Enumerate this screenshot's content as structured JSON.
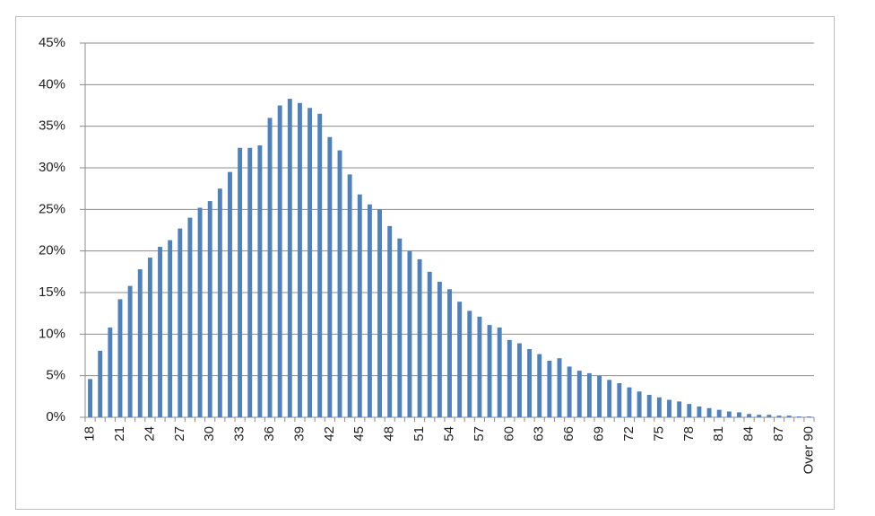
{
  "chart_data": {
    "type": "bar",
    "color": "#4f81bd",
    "grid": true,
    "categories": [
      "18",
      null,
      null,
      "21",
      null,
      null,
      "24",
      null,
      null,
      "27",
      null,
      null,
      "30",
      null,
      null,
      "33",
      null,
      null,
      "36",
      null,
      null,
      "39",
      null,
      null,
      "42",
      null,
      null,
      "45",
      null,
      null,
      "48",
      null,
      null,
      "51",
      null,
      null,
      "54",
      null,
      null,
      "57",
      null,
      null,
      "60",
      null,
      null,
      "63",
      null,
      null,
      "66",
      null,
      null,
      "69",
      null,
      null,
      "72",
      null,
      null,
      "75",
      null,
      null,
      "78",
      null,
      null,
      "81",
      null,
      null,
      "84",
      null,
      null,
      "87",
      null,
      null,
      "Over 90"
    ],
    "values": [
      4.6,
      8,
      10.8,
      14.2,
      15.8,
      17.8,
      19.2,
      20.5,
      21.3,
      22.7,
      24,
      25.2,
      26,
      27.5,
      29.5,
      32.4,
      32.4,
      32.7,
      36,
      37.5,
      38.3,
      37.8,
      37.2,
      36.5,
      33.7,
      32.1,
      29.2,
      26.8,
      25.6,
      25,
      23,
      21.5,
      20,
      19,
      17.5,
      16.3,
      15.4,
      13.9,
      12.8,
      12.1,
      11.1,
      10.8,
      9.3,
      8.9,
      8.2,
      7.6,
      6.8,
      7.1,
      6.1,
      5.6,
      5.3,
      5,
      4.5,
      4.1,
      3.6,
      3.1,
      2.7,
      2.4,
      2.1,
      1.9,
      1.6,
      1.3,
      1.1,
      0.9,
      0.7,
      0.6,
      0.4,
      0.3,
      0.3,
      0.2,
      0.2,
      0.1,
      0.1
    ],
    "ylim": [
      0,
      45
    ],
    "yticks": [
      {
        "value": 0,
        "label": "0%"
      },
      {
        "value": 5,
        "label": "5%"
      },
      {
        "value": 10,
        "label": "10%"
      },
      {
        "value": 15,
        "label": "15%"
      },
      {
        "value": 20,
        "label": "20%"
      },
      {
        "value": 25,
        "label": "25%"
      },
      {
        "value": 30,
        "label": "30%"
      },
      {
        "value": 35,
        "label": "35%"
      },
      {
        "value": 40,
        "label": "40%"
      },
      {
        "value": 45,
        "label": "45%"
      }
    ]
  }
}
